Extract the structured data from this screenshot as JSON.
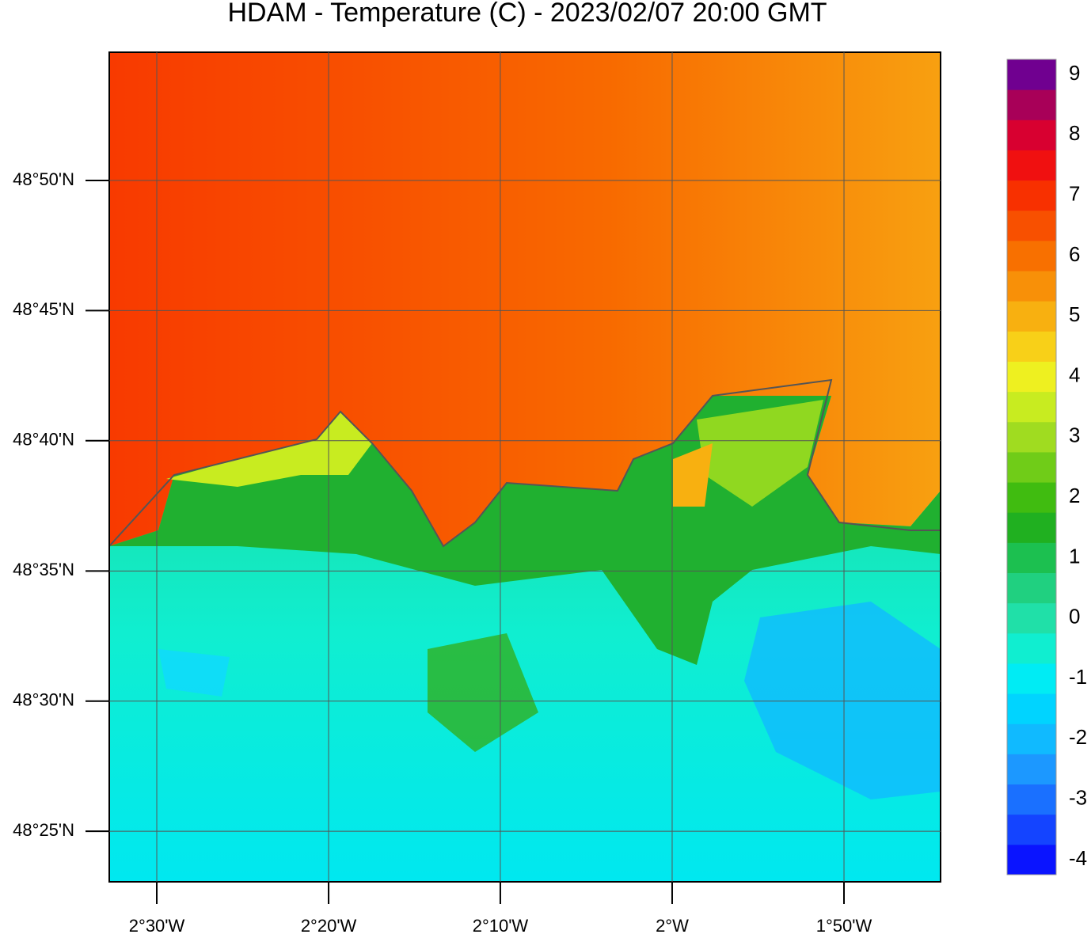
{
  "title": "HDAM - Temperature (C)  -  2023/02/07  20:00 GMT",
  "map": {
    "xlim": [
      -2.5461,
      -1.7396
    ],
    "ylim": [
      48.3843,
      48.9154
    ],
    "xticks": [
      {
        "value": -2.5,
        "label": "2°30'W"
      },
      {
        "value": -2.3333,
        "label": "2°20'W"
      },
      {
        "value": -2.1667,
        "label": "2°10'W"
      },
      {
        "value": -2.0,
        "label": "2°W"
      },
      {
        "value": -1.8333,
        "label": "1°50'W"
      }
    ],
    "yticks": [
      {
        "value": 48.8333,
        "label": "48°50'N"
      },
      {
        "value": 48.75,
        "label": "48°45'N"
      },
      {
        "value": 48.6667,
        "label": "48°40'N"
      },
      {
        "value": 48.5833,
        "label": "48°35'N"
      },
      {
        "value": 48.5,
        "label": "48°30'N"
      },
      {
        "value": 48.4167,
        "label": "48°25'N"
      }
    ]
  },
  "colorbar": {
    "range": [
      -4.25,
      9.25
    ],
    "ticks": [
      -4,
      -3,
      -2,
      -1,
      0,
      1,
      2,
      3,
      4,
      5,
      6,
      7,
      8,
      9
    ],
    "colors": [
      "#0a14ff",
      "#1444ff",
      "#1a70ff",
      "#1c98ff",
      "#10baff",
      "#00d4ff",
      "#00ecf4",
      "#10eed0",
      "#20e0a8",
      "#20d080",
      "#1cc050",
      "#20b020",
      "#40bc10",
      "#70cc18",
      "#a0dc20",
      "#c8ec20",
      "#eef020",
      "#f8d018",
      "#f8b010",
      "#f89008",
      "#f87000",
      "#f85000",
      "#f83000",
      "#f01010",
      "#d80030",
      "#a80058",
      "#700090"
    ]
  }
}
